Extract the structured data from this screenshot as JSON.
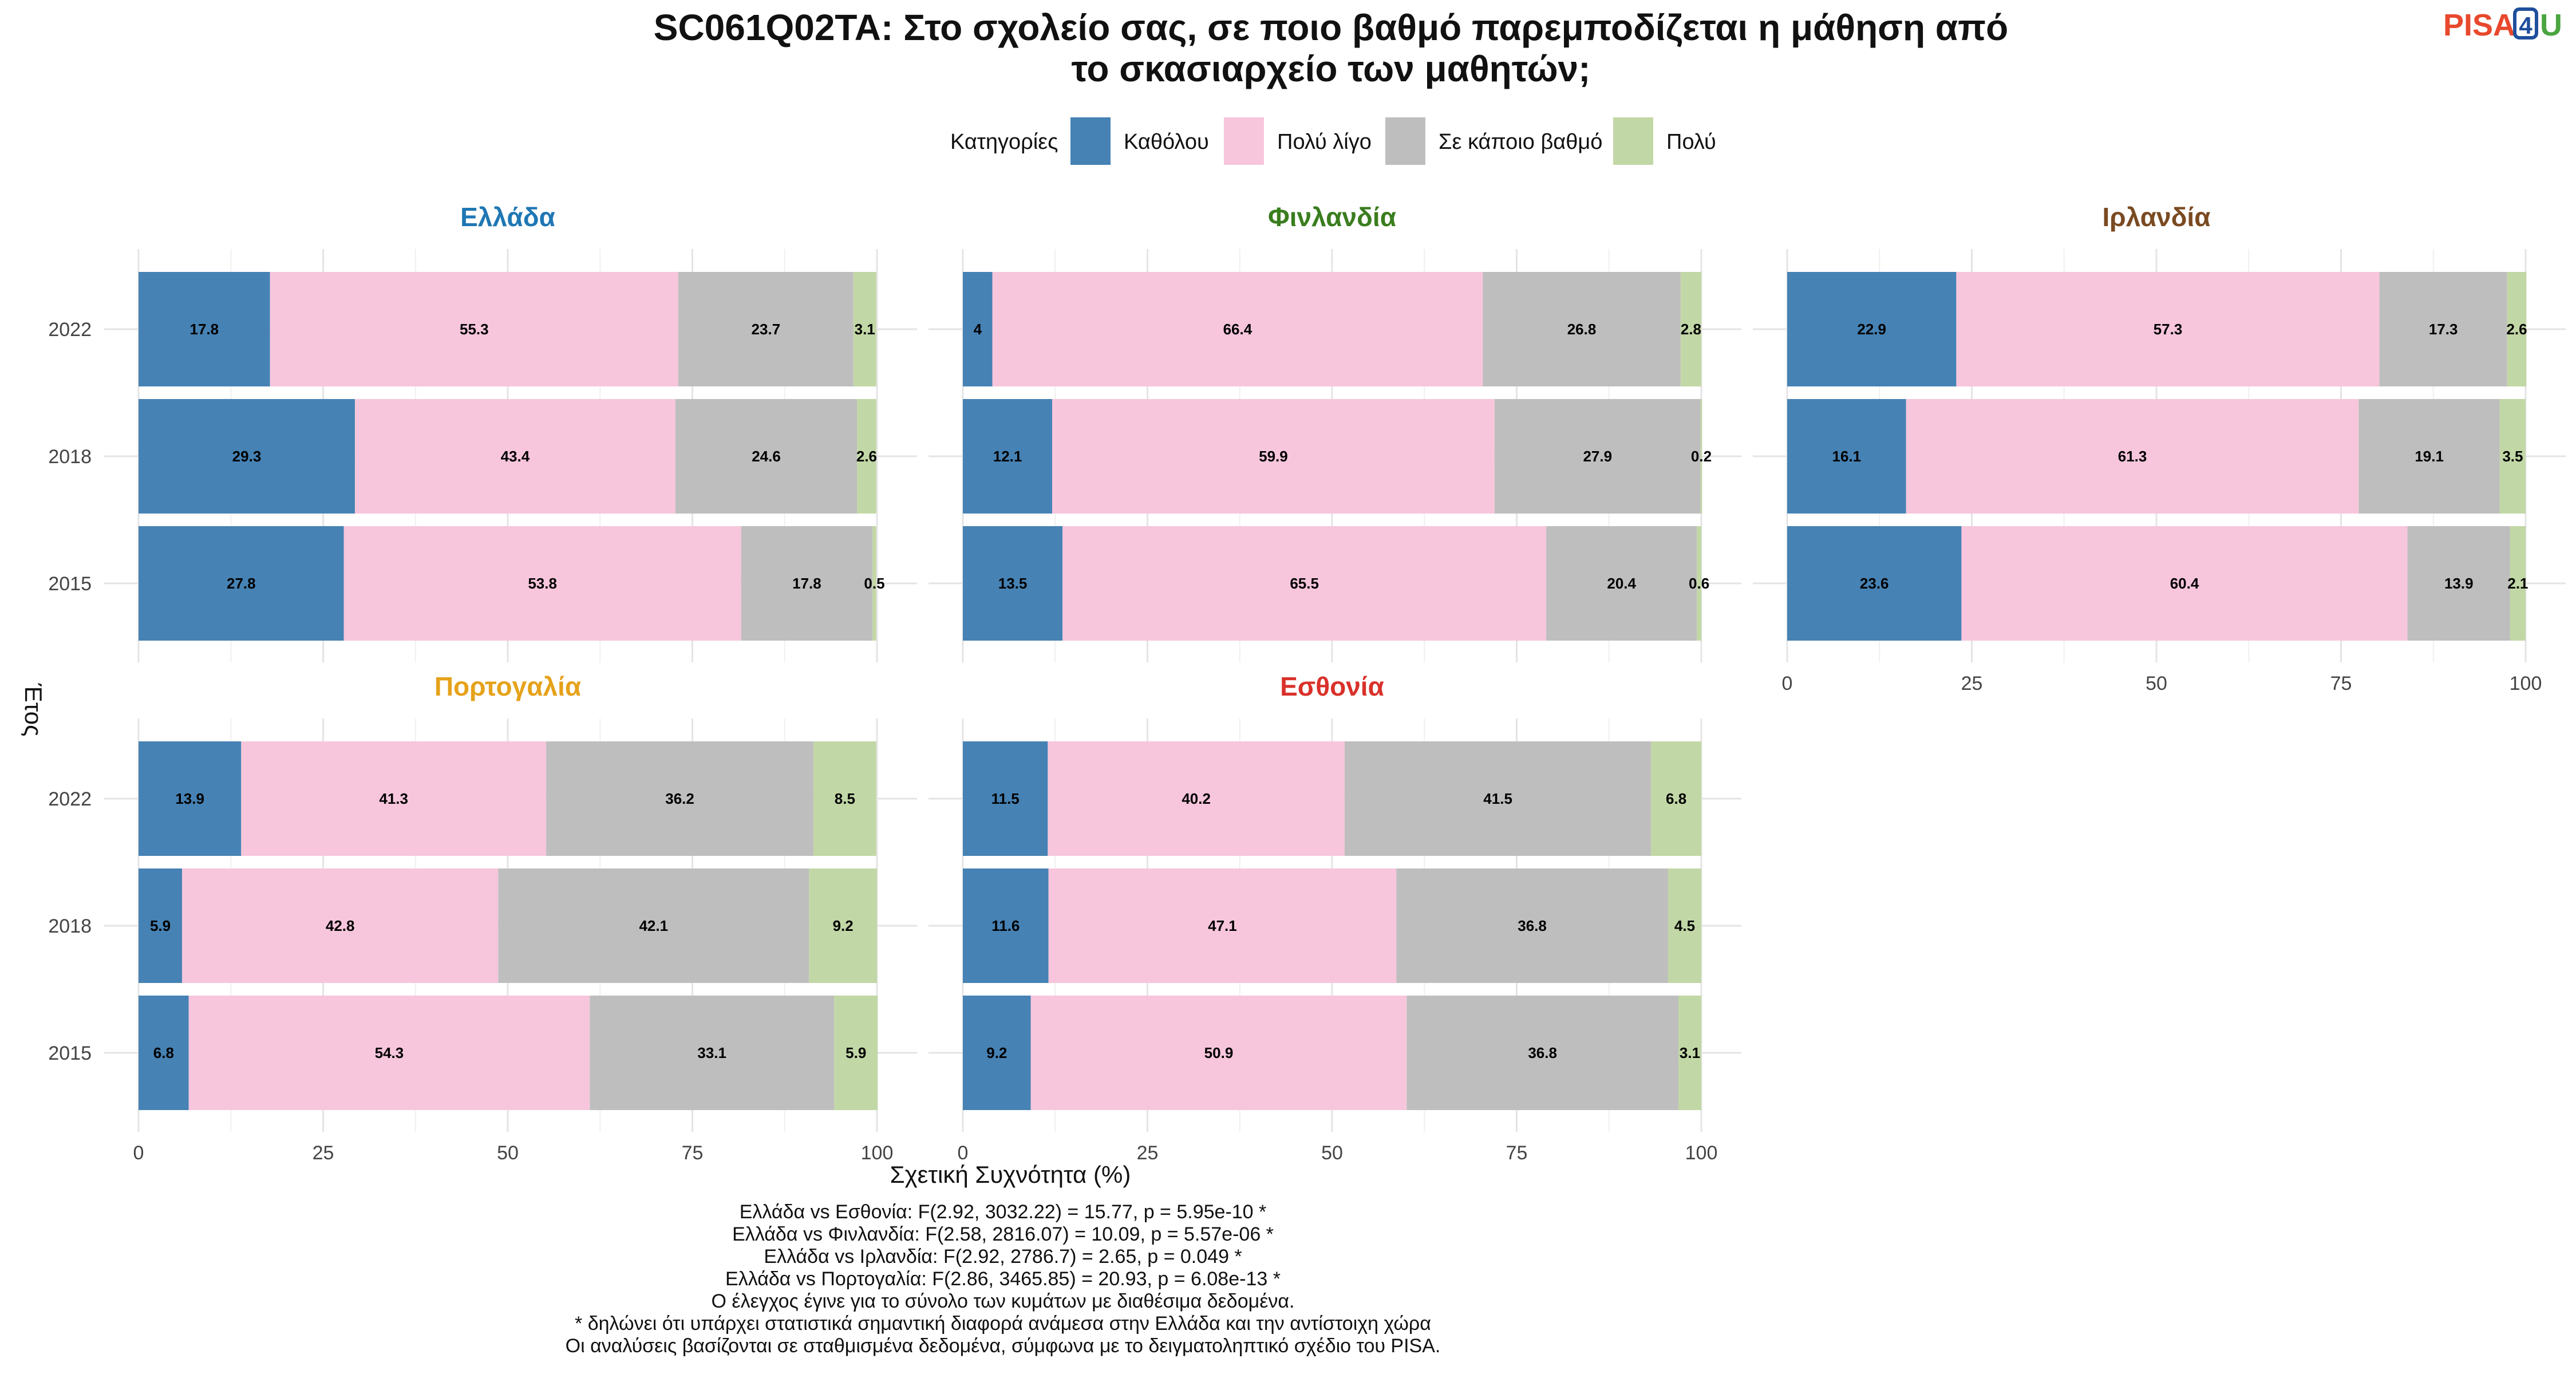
{
  "title_lines": [
    "SC061Q02TA: Στο σχολείο σας, σε ποιο βαθμό παρεμποδίζεται η μάθηση από",
    "το σκασιαρχείο των μαθητών;"
  ],
  "logo": {
    "part1": "PISA",
    "part2": "4",
    "part3": "U",
    "color1": "#e8482c",
    "color2": "#1f4e9c",
    "color3": "#4aa540"
  },
  "chart_data": {
    "type": "bar",
    "orientation": "horizontal",
    "stacked": true,
    "legend": {
      "title": "Κατηγορίες",
      "position": "top",
      "items": [
        {
          "name": "Καθόλου",
          "color": "#4682b4"
        },
        {
          "name": "Πολύ λίγο",
          "color": "#f7c6dc"
        },
        {
          "name": "Σε κάποιο βαθμό",
          "color": "#bebebe"
        },
        {
          "name": "Πολύ",
          "color": "#c2d7a6"
        }
      ]
    },
    "xlabel": "Σχετική Συχνότητα (%)",
    "ylabel": "Έτος",
    "xlim": [
      0,
      100
    ],
    "xticks": [
      "0",
      "25",
      "50",
      "75",
      "100"
    ],
    "grid": true,
    "panels": [
      {
        "country": "Ελλάδα",
        "color": "#1f77b4",
        "years": [
          "2022",
          "2018",
          "2015"
        ],
        "values": [
          [
            17.8,
            55.3,
            23.7,
            3.1
          ],
          [
            29.3,
            43.4,
            24.6,
            2.6
          ],
          [
            27.8,
            53.8,
            17.8,
            0.5
          ]
        ]
      },
      {
        "country": "Φινλανδία",
        "color": "#3a7d1e",
        "years": [
          "2022",
          "2018",
          "2015"
        ],
        "values": [
          [
            4,
            66.4,
            26.8,
            2.8
          ],
          [
            12.1,
            59.9,
            27.9,
            0.2
          ],
          [
            13.5,
            65.5,
            20.4,
            0.6
          ]
        ]
      },
      {
        "country": "Ιρλανδία",
        "color": "#7a4a21",
        "years": [
          "2022",
          "2018",
          "2015"
        ],
        "values": [
          [
            22.9,
            57.3,
            17.3,
            2.6
          ],
          [
            16.1,
            61.3,
            19.1,
            3.5
          ],
          [
            23.6,
            60.4,
            13.9,
            2.1
          ]
        ]
      },
      {
        "country": "Πορτογαλία",
        "color": "#e6a21a",
        "years": [
          "2022",
          "2018",
          "2015"
        ],
        "values": [
          [
            13.9,
            41.3,
            36.2,
            8.5
          ],
          [
            5.9,
            42.8,
            42.1,
            9.2
          ],
          [
            6.8,
            54.3,
            33.1,
            5.9
          ]
        ]
      },
      {
        "country": "Εσθονία",
        "color": "#d9312a",
        "years": [
          "2022",
          "2018",
          "2015"
        ],
        "values": [
          [
            11.5,
            40.2,
            41.5,
            6.8
          ],
          [
            11.6,
            47.1,
            36.8,
            4.5
          ],
          [
            9.2,
            50.9,
            36.8,
            3.1
          ]
        ]
      }
    ]
  },
  "caption_lines": [
    "Ελλάδα vs Εσθονία: F(2.92, 3032.22) = 15.77, p = 5.95e-10 *",
    "Ελλάδα vs Φινλανδία: F(2.58, 2816.07) = 10.09, p = 5.57e-06 *",
    "Ελλάδα vs Ιρλανδία: F(2.92, 2786.7) = 2.65, p = 0.049 *",
    "Ελλάδα vs Πορτογαλία: F(2.86, 3465.85) = 20.93, p = 6.08e-13 *",
    "Ο έλεγχος έγινε για το σύνολο των κυμάτων με διαθέσιμα δεδομένα.",
    "* δηλώνει ότι υπάρχει στατιστικά σημαντική διαφορά ανάμεσα στην Ελλάδα και την αντίστοιχη χώρα",
    "Οι αναλύσεις βασίζονται σε σταθμισμένα δεδομένα, σύμφωνα με το δειγματοληπτικό σχέδιο του PISA."
  ]
}
